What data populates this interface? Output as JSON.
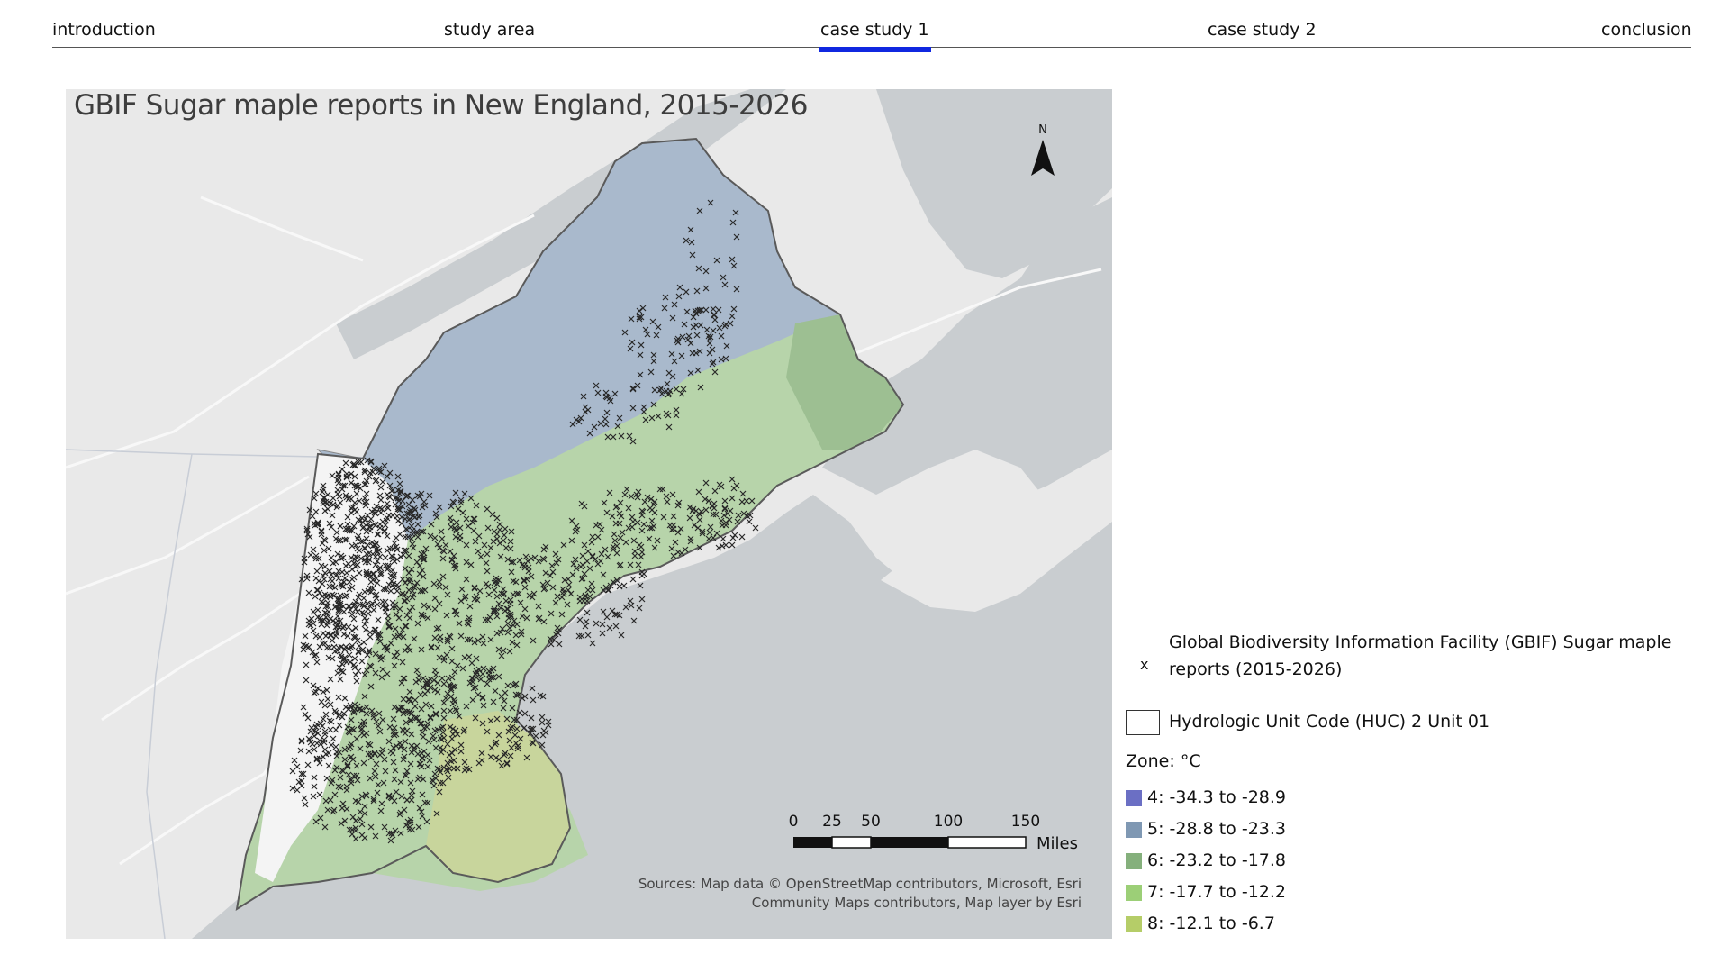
{
  "nav": {
    "items": [
      "introduction",
      "study area",
      "case study 1",
      "case study 2",
      "conclusion"
    ],
    "active_index": 2,
    "accent_color": "#1028e0"
  },
  "map": {
    "title": "GBIF Sugar maple reports in New England, 2015-2026",
    "north_label": "N",
    "scale_ticks": [
      "0",
      "25",
      "50",
      "100",
      "150"
    ],
    "scale_unit": "Miles",
    "sources_line1": "Sources: Map data © OpenStreetMap contributors, Microsoft, Esri",
    "sources_line2": "Community Maps contributors, Map layer by Esri",
    "colors": {
      "water": "#c9cdd0",
      "land": "#e9e9e9",
      "zone_blue": "#a9b9cc",
      "zone_green": "#b7d4aa",
      "zone_dark_green": "#9dbf92",
      "zone_yellow_green": "#c8d59c"
    }
  },
  "legend": {
    "points_label": "Global Biodiversity Information Facility (GBIF) Sugar maple reports (2015-2026)",
    "points_symbol": "x",
    "boundary_label": "Hydrologic Unit Code (HUC) 2 Unit 01",
    "zone_title": "Zone: °C",
    "zones": [
      {
        "label": "4: -34.3 to -28.9",
        "color": "#6b6fc4"
      },
      {
        "label": "5: -28.8 to -23.3",
        "color": "#7f98b3"
      },
      {
        "label": "6: -23.2 to -17.8",
        "color": "#85b07c"
      },
      {
        "label": "7: -17.7 to -12.2",
        "color": "#9ccf77"
      },
      {
        "label": "8: -12.1 to -6.7",
        "color": "#b5cd68"
      }
    ]
  }
}
